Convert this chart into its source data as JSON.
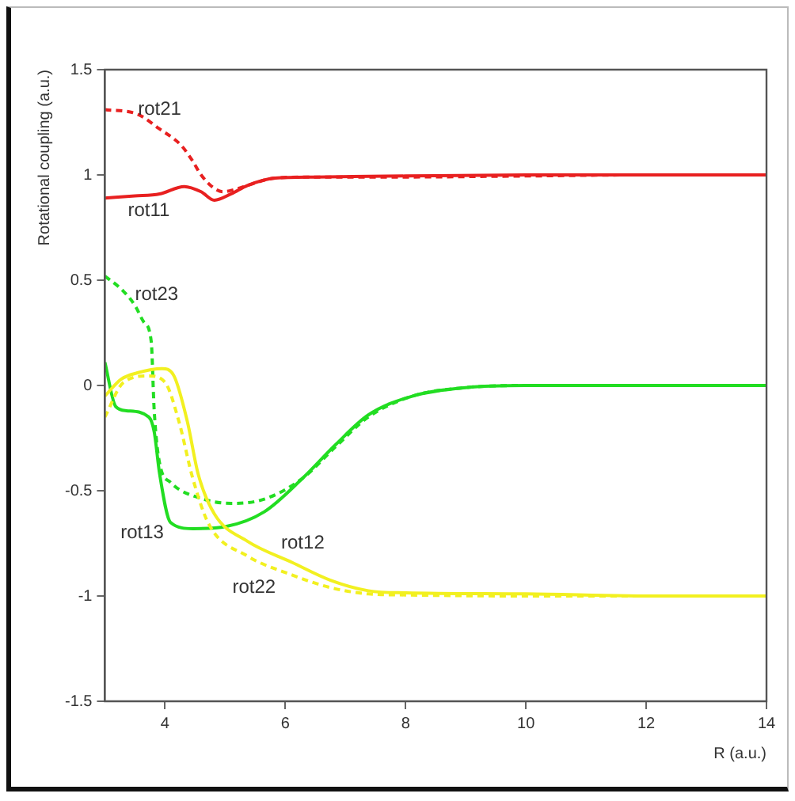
{
  "chart_data": {
    "type": "line",
    "xlabel": "R (a.u.)",
    "ylabel": "Rotational coupling (a.u.)",
    "xlim": [
      3,
      14
    ],
    "xticks": [
      4,
      6,
      8,
      10,
      12,
      14
    ],
    "ylim": [
      -1.5,
      1.5
    ],
    "yticks": [
      -1.5,
      -1,
      -0.5,
      0,
      0.5,
      1,
      1.5
    ],
    "grid": false,
    "legend": false,
    "marker": "none",
    "series": [
      {
        "name": "rot11",
        "color": "#e82020",
        "line_style": "solid",
        "x": [
          3,
          3.5,
          3.91,
          4.32,
          4.6,
          4.82,
          5.1,
          5.37,
          5.83,
          6.5,
          8,
          10,
          12,
          14
        ],
        "values": [
          0.89,
          0.9,
          0.91,
          0.945,
          0.92,
          0.88,
          0.91,
          0.95,
          0.985,
          0.99,
          0.995,
          1.0,
          1.0,
          1.0
        ]
      },
      {
        "name": "rot21",
        "color": "#e82020",
        "line_style": "dashed",
        "x": [
          3,
          3.53,
          3.9,
          4.27,
          4.45,
          4.6,
          4.8,
          4.96,
          5.15,
          5.37,
          5.83,
          6.5,
          8,
          10,
          12,
          14
        ],
        "values": [
          1.31,
          1.29,
          1.22,
          1.14,
          1.07,
          1.0,
          0.94,
          0.92,
          0.93,
          0.95,
          0.985,
          0.99,
          0.99,
          0.995,
          1.0,
          1.0
        ]
      },
      {
        "name": "rot12",
        "color": "#f2f020",
        "line_style": "solid",
        "x": [
          3,
          3.27,
          3.54,
          3.95,
          4.14,
          4.37,
          4.55,
          4.82,
          5.37,
          6.11,
          6.75,
          7.38,
          8,
          10,
          12,
          14
        ],
        "values": [
          -0.05,
          0.03,
          0.06,
          0.08,
          0.05,
          -0.17,
          -0.42,
          -0.61,
          -0.74,
          -0.84,
          -0.925,
          -0.975,
          -0.985,
          -0.99,
          -1.0,
          -1.0
        ]
      },
      {
        "name": "rot22",
        "color": "#f2f020",
        "line_style": "dashed",
        "x": [
          3,
          3.31,
          3.73,
          4.0,
          4.23,
          4.46,
          4.73,
          5.37,
          6.11,
          6.75,
          7.38,
          8,
          10,
          12,
          14
        ],
        "values": [
          -0.15,
          0.015,
          0.045,
          0.015,
          -0.17,
          -0.44,
          -0.66,
          -0.81,
          -0.9,
          -0.96,
          -0.99,
          -0.995,
          -1.0,
          -1.0,
          -1.0
        ]
      },
      {
        "name": "rot13",
        "color": "#22dd22",
        "line_style": "solid",
        "x": [
          3,
          3.18,
          3.36,
          3.73,
          3.82,
          3.91,
          4.09,
          4.46,
          5.01,
          5.65,
          6.29,
          6.84,
          7.38,
          8.12,
          9,
          10,
          12,
          14
        ],
        "values": [
          0.11,
          -0.1,
          -0.12,
          -0.15,
          -0.22,
          -0.42,
          -0.65,
          -0.68,
          -0.67,
          -0.6,
          -0.44,
          -0.28,
          -0.14,
          -0.05,
          -0.01,
          0.0,
          0.0,
          0.0
        ]
      },
      {
        "name": "rot23",
        "color": "#22dd22",
        "line_style": "dashed",
        "x": [
          3,
          3.3,
          3.5,
          3.65,
          3.77,
          3.82,
          3.91,
          4.09,
          4.64,
          5.1,
          5.65,
          6.29,
          6.84,
          7.38,
          8.12,
          9,
          10,
          12,
          14
        ],
        "values": [
          0.52,
          0.45,
          0.38,
          0.3,
          0.21,
          -0.12,
          -0.37,
          -0.46,
          -0.54,
          -0.56,
          -0.54,
          -0.44,
          -0.29,
          -0.15,
          -0.05,
          -0.01,
          0.0,
          0.0,
          0.0
        ]
      }
    ]
  }
}
